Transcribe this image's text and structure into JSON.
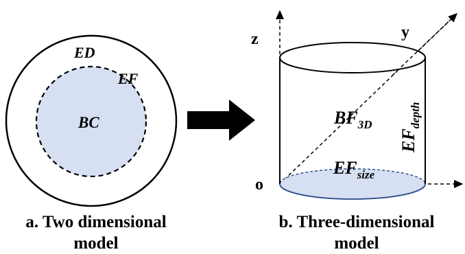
{
  "colors": {
    "fill_blue": "#d6e0f2",
    "stroke": "#000000",
    "ellipse_stroke": "#2f4f8f"
  },
  "two_d": {
    "outer_label": "ED",
    "edge_label": "EF",
    "core_label": "BC"
  },
  "three_d": {
    "axis_z": "z",
    "axis_y": "y",
    "origin": "o",
    "volume_label_main": "BF",
    "volume_label_sub": "3D",
    "depth_label_main": "EF",
    "depth_label_sub": "depth",
    "size_label_main": "EF",
    "size_label_sub": "size"
  },
  "captions": {
    "a_line1": "a. Two dimensional",
    "a_line2": "model",
    "b_line1": "b. Three-dimensional",
    "b_line2": "model"
  }
}
